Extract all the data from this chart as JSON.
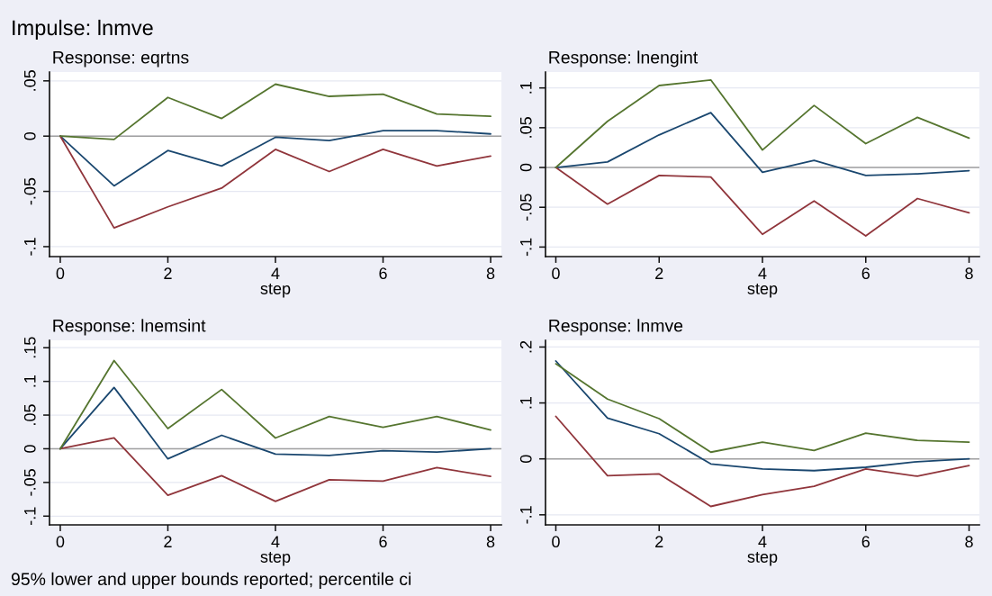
{
  "chart_data": [
    {
      "type": "line",
      "title": "Impulse: lnmve",
      "subtitle": "Response: eqrtns",
      "xlabel": "step",
      "x": [
        0,
        1,
        2,
        3,
        4,
        5,
        6,
        7,
        8
      ],
      "xlim": [
        -0.2,
        8.2
      ],
      "xticks": [
        0,
        2,
        4,
        6,
        8
      ],
      "ylim": [
        -0.109,
        0.058
      ],
      "yticks": [
        {
          "value": -0.1,
          "label": "-.1"
        },
        {
          "value": -0.05,
          "label": "-.05"
        },
        0,
        {
          "value": 0.05,
          "label": ".05"
        }
      ],
      "grid": "y",
      "ref_lines": [
        {
          "axis": "y",
          "value": 0,
          "color": "#a0a0a0"
        }
      ],
      "series": [
        {
          "color": "#1a476f",
          "values": [
            0,
            -0.045,
            -0.013,
            -0.027,
            -0.001,
            -0.004,
            0.005,
            0.005,
            0.002
          ]
        },
        {
          "color": "#90353b",
          "values": [
            0,
            -0.083,
            -0.064,
            -0.047,
            -0.012,
            -0.032,
            -0.012,
            -0.027,
            -0.018
          ]
        },
        {
          "color": "#55752f",
          "values": [
            0,
            -0.003,
            0.035,
            0.016,
            0.047,
            0.036,
            0.038,
            0.02,
            0.018
          ]
        }
      ]
    },
    {
      "type": "line",
      "subtitle": "Response: lnengint",
      "xlabel": "step",
      "x": [
        0,
        1,
        2,
        3,
        4,
        5,
        6,
        7,
        8
      ],
      "xlim": [
        -0.2,
        8.2
      ],
      "xticks": [
        0,
        2,
        4,
        6,
        8
      ],
      "ylim": [
        -0.112,
        0.12
      ],
      "yticks": [
        {
          "value": -0.1,
          "label": "-.1"
        },
        {
          "value": -0.05,
          "label": "-.05"
        },
        0,
        {
          "value": 0.05,
          "label": ".05"
        },
        {
          "value": 0.1,
          "label": ".1"
        }
      ],
      "grid": "y",
      "ref_lines": [
        {
          "axis": "y",
          "value": 0,
          "color": "#a0a0a0"
        }
      ],
      "series": [
        {
          "color": "#1a476f",
          "values": [
            0,
            0.007,
            0.041,
            0.069,
            -0.006,
            0.009,
            -0.01,
            -0.008,
            -0.004
          ]
        },
        {
          "color": "#90353b",
          "values": [
            0,
            -0.046,
            -0.01,
            -0.012,
            -0.084,
            -0.042,
            -0.086,
            -0.039,
            -0.057
          ]
        },
        {
          "color": "#55752f",
          "values": [
            0,
            0.058,
            0.103,
            0.11,
            0.022,
            0.078,
            0.03,
            0.063,
            0.037
          ]
        }
      ]
    },
    {
      "type": "line",
      "subtitle": "Response: lnemsint",
      "xlabel": "step",
      "x": [
        0,
        1,
        2,
        3,
        4,
        5,
        6,
        7,
        8
      ],
      "xlim": [
        -0.2,
        8.2
      ],
      "xticks": [
        0,
        2,
        4,
        6,
        8
      ],
      "ylim": [
        -0.113,
        0.161
      ],
      "yticks": [
        {
          "value": -0.1,
          "label": "-.1"
        },
        {
          "value": -0.05,
          "label": "-.05"
        },
        0,
        {
          "value": 0.05,
          "label": ".05"
        },
        {
          "value": 0.1,
          "label": ".1"
        },
        {
          "value": 0.15,
          "label": ".15"
        }
      ],
      "grid": "y",
      "ref_lines": [
        {
          "axis": "y",
          "value": 0,
          "color": "#a0a0a0"
        }
      ],
      "annotations": [
        "95% lower and upper bounds reported; percentile ci"
      ],
      "series": [
        {
          "color": "#1a476f",
          "values": [
            0,
            0.091,
            -0.015,
            0.02,
            -0.008,
            -0.01,
            -0.003,
            -0.005,
            0
          ]
        },
        {
          "color": "#90353b",
          "values": [
            0,
            0.016,
            -0.069,
            -0.04,
            -0.078,
            -0.046,
            -0.048,
            -0.028,
            -0.041
          ]
        },
        {
          "color": "#55752f",
          "values": [
            0,
            0.131,
            0.03,
            0.088,
            0.016,
            0.048,
            0.032,
            0.048,
            0.028
          ]
        }
      ]
    },
    {
      "type": "line",
      "subtitle": "Response: lnmve",
      "xlabel": "step",
      "x": [
        0,
        1,
        2,
        3,
        4,
        5,
        6,
        7,
        8
      ],
      "xlim": [
        -0.2,
        8.2
      ],
      "xticks": [
        0,
        2,
        4,
        6,
        8
      ],
      "ylim": [
        -0.118,
        0.212
      ],
      "yticks": [
        {
          "value": -0.1,
          "label": "-.1"
        },
        0,
        {
          "value": 0.1,
          "label": ".1"
        },
        {
          "value": 0.2,
          "label": ".2"
        }
      ],
      "grid": "y",
      "ref_lines": [
        {
          "axis": "y",
          "value": 0,
          "color": "#a0a0a0"
        }
      ],
      "series": [
        {
          "color": "#1a476f",
          "values": [
            0.175,
            0.073,
            0.045,
            -0.009,
            -0.018,
            -0.021,
            -0.015,
            -0.005,
            0
          ]
        },
        {
          "color": "#90353b",
          "values": [
            0.076,
            -0.03,
            -0.027,
            -0.085,
            -0.064,
            -0.049,
            -0.018,
            -0.031,
            -0.012
          ]
        },
        {
          "color": "#55752f",
          "values": [
            0.17,
            0.107,
            0.072,
            0.012,
            0.03,
            0.015,
            0.046,
            0.033,
            0.03
          ]
        }
      ]
    }
  ]
}
